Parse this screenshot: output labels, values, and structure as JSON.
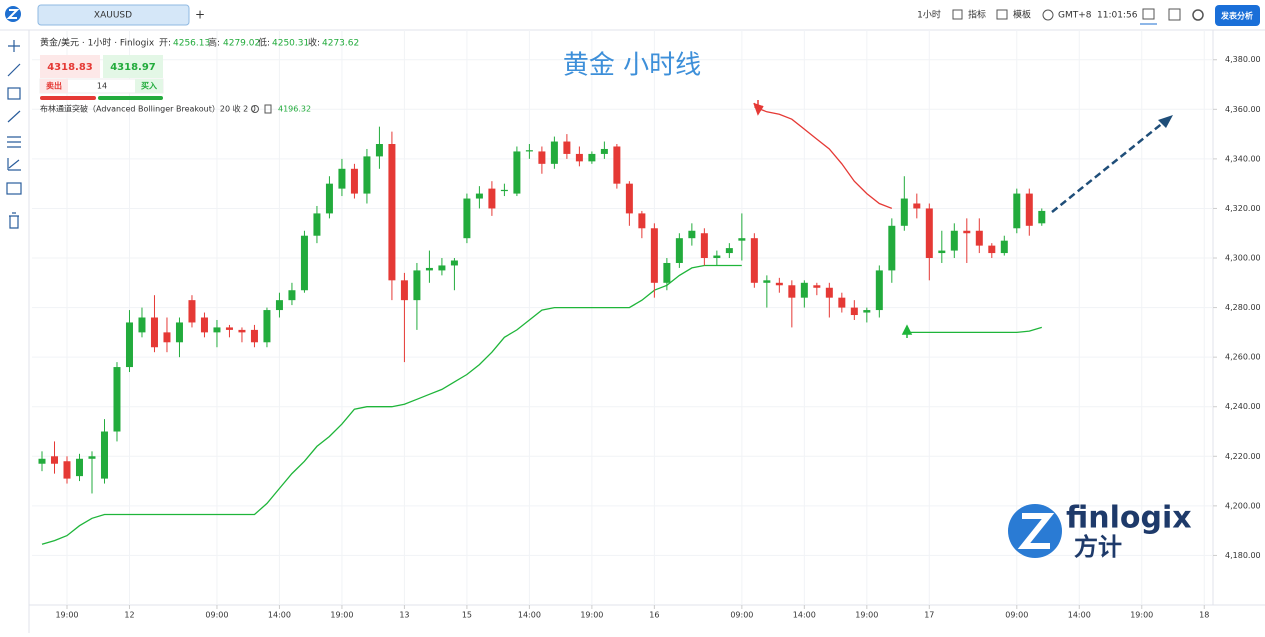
{
  "toolbar": {
    "symbol": "XAUUSD",
    "add_tab": "+",
    "interval": "1小时",
    "indicators": "指标",
    "templates": "模板",
    "timezone": "GMT+8",
    "clock": "11:01:56",
    "publish": "发表分析"
  },
  "legend": {
    "instrument": "黄金/美元 · 1小时 · Finlogix",
    "open_label": "开:",
    "open": "4256.13",
    "high_label": "高:",
    "high": "4279.02",
    "low_label": "低:",
    "low": "4250.31",
    "close_label": "收:",
    "close": "4273.62"
  },
  "trade": {
    "sell_price": "4318.83",
    "buy_price": "4318.97",
    "sell": "卖出",
    "quantity": "14",
    "buy": "买入"
  },
  "indicator": {
    "name": "布林通道突破（Advanced Bollinger Breakout）20 收 2 0",
    "value": "4196.32"
  },
  "watermark": {
    "brand": "finlogix",
    "brand_cn": "方计"
  },
  "chart_data": {
    "type": "candlestick",
    "title": "黄金 小时线",
    "up_color": "#22ab3c",
    "down_color": "#e53935",
    "open": [
      4217,
      4220,
      4218,
      4212,
      4219,
      4211,
      4230,
      4256,
      4270,
      4276,
      4270,
      4266,
      4283,
      4276,
      4270,
      4272,
      4271,
      4271,
      4266,
      4279,
      4283,
      4287,
      4309,
      4318,
      4328,
      4336,
      4326,
      4341,
      4346,
      4291,
      4283,
      4295,
      4295,
      4297,
      4308,
      4324,
      4328,
      4327,
      4326,
      4343,
      4343,
      4338,
      4347,
      4342,
      4339,
      4342,
      4345,
      4330,
      4318,
      4312,
      4290,
      4298,
      4308,
      4310,
      4300,
      4302,
      4307,
      4308,
      4290,
      4290,
      4289,
      4284,
      4289,
      4288,
      4284,
      4280,
      4278,
      4279,
      4295,
      4313,
      4322,
      4320,
      4302,
      4303,
      4311,
      4311,
      4305,
      4302,
      4312,
      4326,
      4314
    ],
    "high": [
      4222,
      4226,
      4220,
      4221,
      4222,
      4235,
      4258,
      4279,
      4280,
      4285,
      4276,
      4276,
      4285,
      4278,
      4275,
      4273,
      4272,
      4273,
      4280,
      4286,
      4290,
      4311,
      4321,
      4333,
      4340,
      4338,
      4344,
      4353,
      4351,
      4294,
      4298,
      4303,
      4300,
      4300,
      4326,
      4329,
      4331,
      4330,
      4345,
      4346,
      4345,
      4349,
      4350,
      4345,
      4343,
      4347,
      4346,
      4331,
      4319,
      4314,
      4300,
      4310,
      4314,
      4312,
      4303,
      4306,
      4318,
      4310,
      4293,
      4292,
      4291,
      4291,
      4290,
      4290,
      4286,
      4283,
      4280,
      4297,
      4316,
      4333,
      4326,
      4322,
      4311,
      4314,
      4316,
      4316,
      4306,
      4309,
      4328,
      4328,
      4320
    ],
    "low": [
      4214,
      4213,
      4209,
      4210,
      4205,
      4209,
      4226,
      4254,
      4268,
      4262,
      4262,
      4260,
      4272,
      4268,
      4264,
      4268,
      4266,
      4264,
      4264,
      4276,
      4281,
      4286,
      4306,
      4316,
      4325,
      4324,
      4322,
      4336,
      4283,
      4258,
      4271,
      4290,
      4293,
      4287,
      4306,
      4320,
      4317,
      4325,
      4325,
      4340,
      4334,
      4336,
      4340,
      4337,
      4338,
      4340,
      4328,
      4313,
      4308,
      4284,
      4287,
      4296,
      4305,
      4297,
      4297,
      4300,
      4299,
      4288,
      4280,
      4286,
      4272,
      4280,
      4285,
      4276,
      4278,
      4275,
      4274,
      4276,
      4290,
      4311,
      4316,
      4291,
      4298,
      4300,
      4298,
      4302,
      4300,
      4301,
      4310,
      4309,
      4313
    ],
    "close": [
      4219,
      4217,
      4211,
      4219,
      4220,
      4230,
      4256,
      4274,
      4276,
      4264,
      4266,
      4274,
      4274,
      4270,
      4272,
      4271,
      4270,
      4266,
      4279,
      4283,
      4287,
      4309,
      4318,
      4330,
      4336,
      4326,
      4341,
      4346,
      4291,
      4283,
      4295,
      4296,
      4297,
      4299,
      4324,
      4326,
      4320,
      4327.5,
      4343,
      4343.5,
      4338,
      4347,
      4342,
      4339,
      4342,
      4344,
      4330,
      4318,
      4312,
      4290,
      4298,
      4308,
      4311,
      4300,
      4301,
      4304,
      4308,
      4290,
      4291,
      4289,
      4284,
      4290,
      4288,
      4284,
      4280,
      4277,
      4279,
      4295,
      4313,
      4324,
      4320,
      4300,
      4303,
      4311,
      4310,
      4305,
      4302,
      4307,
      4326,
      4313,
      4319
    ],
    "lines": [
      {
        "color": "#1fb53a",
        "values": [
          4184.5,
          4186,
          4188,
          4192,
          4195,
          4196.5,
          4196.5,
          4196.5,
          4196.5,
          4196.5,
          4196.5,
          4196.5,
          4196.5,
          4196.5,
          4196.5,
          4196.5,
          4196.5,
          4196.5,
          4201,
          4207,
          4213,
          4218,
          4224,
          4228,
          4233,
          4239,
          4240,
          4240,
          4240,
          4241,
          4243,
          4245,
          4247,
          4250,
          4253,
          4257,
          4262,
          4268,
          4271,
          4275,
          4279,
          4280,
          4280,
          4280,
          4280,
          4280,
          4280,
          4280,
          4283,
          4287,
          4289,
          4293,
          4296,
          4297,
          4297,
          4297,
          4297,
          null,
          null,
          null,
          null,
          null,
          null,
          null,
          null,
          null,
          null,
          null,
          null,
          null,
          null,
          null,
          null,
          null,
          null,
          null,
          null,
          null,
          null,
          null,
          null
        ]
      },
      {
        "color": "#e53935",
        "values": [
          null,
          null,
          null,
          null,
          null,
          null,
          null,
          null,
          null,
          null,
          null,
          null,
          null,
          null,
          null,
          null,
          null,
          null,
          null,
          null,
          null,
          null,
          null,
          null,
          null,
          null,
          null,
          null,
          null,
          null,
          null,
          null,
          null,
          null,
          null,
          null,
          null,
          null,
          null,
          null,
          null,
          null,
          null,
          null,
          null,
          null,
          null,
          null,
          null,
          null,
          null,
          null,
          null,
          null,
          null,
          null,
          null,
          4361,
          4359,
          4358,
          4356,
          4352,
          4348,
          4344,
          4338,
          4331,
          4326,
          4322,
          4320,
          null,
          null,
          null,
          null,
          null,
          null,
          null,
          null,
          null,
          null,
          null,
          null
        ]
      },
      {
        "color": "#1fb53a",
        "values": [
          null,
          null,
          null,
          null,
          null,
          null,
          null,
          null,
          null,
          null,
          null,
          null,
          null,
          null,
          null,
          null,
          null,
          null,
          null,
          null,
          null,
          null,
          null,
          null,
          null,
          null,
          null,
          null,
          null,
          null,
          null,
          null,
          null,
          null,
          null,
          null,
          null,
          null,
          null,
          null,
          null,
          null,
          null,
          null,
          null,
          null,
          null,
          null,
          null,
          null,
          null,
          null,
          null,
          null,
          null,
          null,
          null,
          null,
          null,
          null,
          null,
          null,
          null,
          null,
          null,
          null,
          null,
          null,
          null,
          4270,
          4270,
          4270,
          4270,
          4270,
          4270,
          4270,
          4270,
          4270,
          4270,
          4270.5,
          4272
        ]
      }
    ],
    "xlim": [
      -0.8,
      93.7
    ],
    "ylim": [
      4160,
      4392
    ],
    "yticks": [
      {
        "value": 4180,
        "label": "4,180.00"
      },
      {
        "value": 4200,
        "label": "4,200.00"
      },
      {
        "value": 4220,
        "label": "4,220.00"
      },
      {
        "value": 4240,
        "label": "4,240.00"
      },
      {
        "value": 4260,
        "label": "4,260.00"
      },
      {
        "value": 4280,
        "label": "4,280.00"
      },
      {
        "value": 4300,
        "label": "4,300.00"
      },
      {
        "value": 4320,
        "label": "4,320.00"
      },
      {
        "value": 4340,
        "label": "4,340.00"
      },
      {
        "value": 4360,
        "label": "4,360.00"
      },
      {
        "value": 4380,
        "label": "4,380.00"
      }
    ],
    "xticks": [
      {
        "value": 2,
        "label": "19:00"
      },
      {
        "value": 7,
        "label": "12"
      },
      {
        "value": 14,
        "label": "09:00"
      },
      {
        "value": 19,
        "label": "14:00"
      },
      {
        "value": 24,
        "label": "19:00"
      },
      {
        "value": 29,
        "label": "13"
      },
      {
        "value": 34,
        "label": "15"
      },
      {
        "value": 39,
        "label": "14:00"
      },
      {
        "value": 44,
        "label": "19:00"
      },
      {
        "value": 49,
        "label": "16"
      },
      {
        "value": 56,
        "label": "09:00"
      },
      {
        "value": 61,
        "label": "14:00"
      },
      {
        "value": 66,
        "label": "19:00"
      },
      {
        "value": 71,
        "label": "17"
      },
      {
        "value": 78,
        "label": "09:00"
      },
      {
        "value": 83,
        "label": "14:00"
      },
      {
        "value": 88,
        "label": "19:00"
      },
      {
        "value": 93,
        "label": "18"
      }
    ],
    "grid": true
  }
}
